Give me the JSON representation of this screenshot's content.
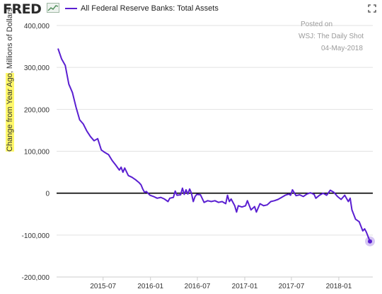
{
  "header": {
    "logo_text": "FRED",
    "series_title": "All Federal Reserve Banks: Total Assets",
    "icons": [
      "fred-graph-icon",
      "expand-icon"
    ]
  },
  "annotations": {
    "line1": "Posted on",
    "line2": "WSJ: The Daily Shot",
    "line3": "04-May-2018"
  },
  "colors": {
    "series": "#5a1fd1",
    "zero_line": "#000000",
    "grid": "#e2e2e2",
    "highlight": "#fff86b"
  },
  "chart_data": {
    "type": "line",
    "title": "All Federal Reserve Banks: Total Assets",
    "ylabel_highlighted": "Change from Year Ago",
    "ylabel_rest": ", Millions of Dollars",
    "xlabel": "",
    "ylim": [
      -200000,
      400000
    ],
    "y_ticks": [
      -200000,
      -100000,
      0,
      100000,
      200000,
      300000,
      400000
    ],
    "y_tick_labels": [
      "-200,000",
      "-100,000",
      "0",
      "100,000",
      "200,000",
      "300,000",
      "400,000"
    ],
    "x_ticks": [
      "2015-07-01",
      "2016-01-01",
      "2016-07-01",
      "2017-01-01",
      "2017-07-01",
      "2018-01-01"
    ],
    "x_tick_labels": [
      "2015-07",
      "2016-01",
      "2016-07",
      "2017-01",
      "2017-07",
      "2018-01"
    ],
    "x_range": [
      "2015-01-07",
      "2018-05-02"
    ],
    "grid": true,
    "legend": "top-left",
    "series": [
      {
        "name": "All Federal Reserve Banks: Total Assets",
        "points": [
          [
            "2015-01-07",
            345000
          ],
          [
            "2015-01-21",
            320000
          ],
          [
            "2015-02-04",
            305000
          ],
          [
            "2015-02-18",
            260000
          ],
          [
            "2015-03-04",
            240000
          ],
          [
            "2015-03-18",
            205000
          ],
          [
            "2015-04-01",
            175000
          ],
          [
            "2015-04-15",
            165000
          ],
          [
            "2015-04-29",
            148000
          ],
          [
            "2015-05-13",
            135000
          ],
          [
            "2015-05-27",
            125000
          ],
          [
            "2015-06-10",
            130000
          ],
          [
            "2015-06-24",
            103000
          ],
          [
            "2015-07-08",
            97000
          ],
          [
            "2015-07-22",
            92000
          ],
          [
            "2015-08-05",
            78000
          ],
          [
            "2015-08-19",
            67000
          ],
          [
            "2015-09-02",
            55000
          ],
          [
            "2015-09-09",
            62000
          ],
          [
            "2015-09-16",
            50000
          ],
          [
            "2015-09-23",
            60000
          ],
          [
            "2015-10-07",
            42000
          ],
          [
            "2015-10-21",
            38000
          ],
          [
            "2015-11-04",
            32000
          ],
          [
            "2015-11-18",
            25000
          ],
          [
            "2015-11-25",
            20000
          ],
          [
            "2015-12-02",
            10000
          ],
          [
            "2015-12-09",
            2000
          ],
          [
            "2015-12-16",
            4000
          ],
          [
            "2015-12-30",
            -5000
          ],
          [
            "2016-01-13",
            -8000
          ],
          [
            "2016-01-27",
            -12000
          ],
          [
            "2016-02-10",
            -10000
          ],
          [
            "2016-02-24",
            -14000
          ],
          [
            "2016-03-09",
            -20000
          ],
          [
            "2016-03-16",
            -12000
          ],
          [
            "2016-03-30",
            -10000
          ],
          [
            "2016-04-06",
            5000
          ],
          [
            "2016-04-13",
            -5000
          ],
          [
            "2016-04-27",
            -4000
          ],
          [
            "2016-05-04",
            12000
          ],
          [
            "2016-05-11",
            -3000
          ],
          [
            "2016-05-18",
            8000
          ],
          [
            "2016-05-25",
            -2000
          ],
          [
            "2016-06-01",
            10000
          ],
          [
            "2016-06-08",
            0
          ],
          [
            "2016-06-15",
            -20000
          ],
          [
            "2016-06-22",
            -8000
          ],
          [
            "2016-06-29",
            -3000
          ],
          [
            "2016-07-13",
            -4000
          ],
          [
            "2016-07-27",
            -22000
          ],
          [
            "2016-08-10",
            -18000
          ],
          [
            "2016-08-24",
            -20000
          ],
          [
            "2016-09-07",
            -18000
          ],
          [
            "2016-09-21",
            -22000
          ],
          [
            "2016-10-05",
            -20000
          ],
          [
            "2016-10-19",
            -25000
          ],
          [
            "2016-10-26",
            -5000
          ],
          [
            "2016-11-02",
            -20000
          ],
          [
            "2016-11-09",
            -14000
          ],
          [
            "2016-11-23",
            -30000
          ],
          [
            "2016-11-30",
            -45000
          ],
          [
            "2016-12-07",
            -30000
          ],
          [
            "2016-12-21",
            -33000
          ],
          [
            "2017-01-04",
            -30000
          ],
          [
            "2017-01-11",
            -18000
          ],
          [
            "2017-01-25",
            -40000
          ],
          [
            "2017-02-08",
            -32000
          ],
          [
            "2017-02-15",
            -45000
          ],
          [
            "2017-03-01",
            -25000
          ],
          [
            "2017-03-15",
            -30000
          ],
          [
            "2017-03-29",
            -28000
          ],
          [
            "2017-04-12",
            -20000
          ],
          [
            "2017-04-26",
            -18000
          ],
          [
            "2017-05-10",
            -15000
          ],
          [
            "2017-05-24",
            -10000
          ],
          [
            "2017-06-07",
            -5000
          ],
          [
            "2017-06-21",
            -2000
          ],
          [
            "2017-06-28",
            -5000
          ],
          [
            "2017-07-05",
            8000
          ],
          [
            "2017-07-19",
            -6000
          ],
          [
            "2017-08-02",
            -4000
          ],
          [
            "2017-08-16",
            -8000
          ],
          [
            "2017-08-30",
            -2000
          ],
          [
            "2017-09-13",
            1000
          ],
          [
            "2017-09-27",
            -3000
          ],
          [
            "2017-10-04",
            -12000
          ],
          [
            "2017-10-18",
            -5000
          ],
          [
            "2017-11-01",
            0
          ],
          [
            "2017-11-15",
            -5000
          ],
          [
            "2017-11-29",
            7000
          ],
          [
            "2017-12-13",
            2000
          ],
          [
            "2017-12-27",
            -8000
          ],
          [
            "2018-01-10",
            -15000
          ],
          [
            "2018-01-24",
            -5000
          ],
          [
            "2018-02-07",
            -20000
          ],
          [
            "2018-02-14",
            -12000
          ],
          [
            "2018-02-21",
            -40000
          ],
          [
            "2018-03-07",
            -62000
          ],
          [
            "2018-03-21",
            -68000
          ],
          [
            "2018-04-04",
            -90000
          ],
          [
            "2018-04-11",
            -85000
          ],
          [
            "2018-04-18",
            -93000
          ],
          [
            "2018-05-02",
            -115000
          ]
        ]
      }
    ]
  }
}
